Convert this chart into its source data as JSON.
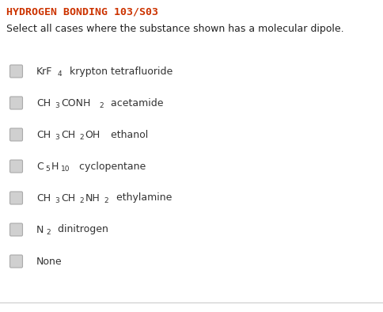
{
  "title": "HYDROGEN BONDING 103/S03",
  "title_color": "#cc3300",
  "instruction": "Select all cases where the substance shown has a molecular dipole.",
  "bg_color": "#ffffff",
  "items": [
    {
      "formula_parts": [
        {
          "text": "KrF",
          "is_sub": false
        },
        {
          "text": "4",
          "is_sub": true
        },
        {
          "text": "  krypton tetrafluoride",
          "is_sub": false,
          "is_label": true
        }
      ]
    },
    {
      "formula_parts": [
        {
          "text": "CH",
          "is_sub": false
        },
        {
          "text": "3",
          "is_sub": true
        },
        {
          "text": "CONH",
          "is_sub": false
        },
        {
          "text": "2",
          "is_sub": true
        },
        {
          "text": "  acetamide",
          "is_sub": false,
          "is_label": true
        }
      ]
    },
    {
      "formula_parts": [
        {
          "text": "CH",
          "is_sub": false
        },
        {
          "text": "3",
          "is_sub": true
        },
        {
          "text": "CH",
          "is_sub": false
        },
        {
          "text": "2",
          "is_sub": true
        },
        {
          "text": "OH",
          "is_sub": false
        },
        {
          "text": "  ethanol",
          "is_sub": false,
          "is_label": true
        }
      ]
    },
    {
      "formula_parts": [
        {
          "text": "C",
          "is_sub": false
        },
        {
          "text": "5",
          "is_sub": true
        },
        {
          "text": "H",
          "is_sub": false
        },
        {
          "text": "10",
          "is_sub": true
        },
        {
          "text": "  cyclopentane",
          "is_sub": false,
          "is_label": true
        }
      ]
    },
    {
      "formula_parts": [
        {
          "text": "CH",
          "is_sub": false
        },
        {
          "text": "3",
          "is_sub": true
        },
        {
          "text": "CH",
          "is_sub": false
        },
        {
          "text": "2",
          "is_sub": true
        },
        {
          "text": "NH",
          "is_sub": false
        },
        {
          "text": "2",
          "is_sub": true
        },
        {
          "text": "  ethylamine",
          "is_sub": false,
          "is_label": true
        }
      ]
    },
    {
      "formula_parts": [
        {
          "text": "N",
          "is_sub": false
        },
        {
          "text": "2",
          "is_sub": true
        },
        {
          "text": "  dinitrogen",
          "is_sub": false,
          "is_label": true
        }
      ]
    },
    {
      "formula_parts": [
        {
          "text": "None",
          "is_sub": false,
          "is_label": true
        }
      ]
    }
  ],
  "checkbox_color": "#d0d0d0",
  "checkbox_edge_color": "#aaaaaa",
  "formula_color": "#333333",
  "label_color": "#333333",
  "instruction_color": "#222222",
  "separator_color": "#cccccc",
  "font_size_title": 9.5,
  "font_size_text": 9.0,
  "font_size_formula": 9.0
}
